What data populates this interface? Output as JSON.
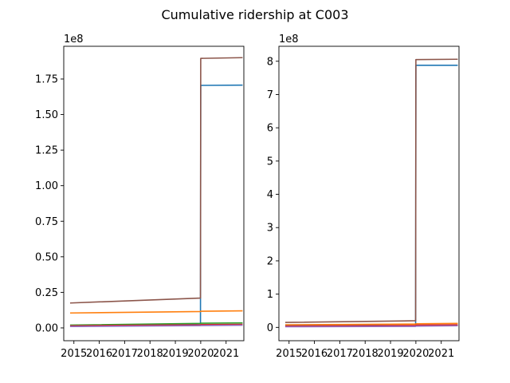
{
  "figure": {
    "title": "Cumulative ridership at C003"
  },
  "chart_data": [
    {
      "type": "line",
      "title": "",
      "xlabel": "",
      "ylabel": "",
      "offset_label": "1e8",
      "xlim": [
        2014.6,
        2021.7
      ],
      "ylim": [
        -0.09,
        1.98
      ],
      "x_ticks": [
        2015,
        2016,
        2017,
        2018,
        2019,
        2020,
        2021
      ],
      "x_tick_labels": [
        "2015",
        "2016",
        "2017",
        "2018",
        "2019",
        "2020",
        "2021"
      ],
      "y_ticks": [
        0.0,
        0.25,
        0.5,
        0.75,
        1.0,
        1.25,
        1.5,
        1.75
      ],
      "y_tick_labels": [
        "0.00",
        "0.25",
        "0.50",
        "0.75",
        "1.00",
        "1.25",
        "1.50",
        "1.75"
      ],
      "grid": false,
      "series": [
        {
          "color": "#1f77b4",
          "x": [
            2014.85,
            2019.99,
            2020.0,
            2021.65
          ],
          "y": [
            0.01,
            0.03,
            1.705,
            1.707
          ]
        },
        {
          "color": "#ff7f0e",
          "x": [
            2014.85,
            2019.99,
            2020.0,
            2021.65
          ],
          "y": [
            0.105,
            0.115,
            0.117,
            0.12
          ]
        },
        {
          "color": "#2ca02c",
          "x": [
            2014.85,
            2019.99,
            2020.0,
            2021.65
          ],
          "y": [
            0.02,
            0.032,
            0.033,
            0.035
          ]
        },
        {
          "color": "#d62728",
          "x": [
            2014.85,
            2019.99,
            2020.0,
            2021.65
          ],
          "y": [
            0.015,
            0.022,
            0.023,
            0.025
          ]
        },
        {
          "color": "#9467bd",
          "x": [
            2014.85,
            2019.99,
            2020.0,
            2021.65
          ],
          "y": [
            0.01,
            0.016,
            0.017,
            0.019
          ]
        },
        {
          "color": "#8c564b",
          "x": [
            2014.85,
            2019.99,
            2020.0,
            2021.65
          ],
          "y": [
            0.175,
            0.21,
            1.895,
            1.9
          ]
        }
      ]
    },
    {
      "type": "line",
      "title": "",
      "xlabel": "",
      "ylabel": "",
      "offset_label": "1e8",
      "xlim": [
        2014.6,
        2021.7
      ],
      "ylim": [
        -0.4,
        8.45
      ],
      "x_ticks": [
        2015,
        2016,
        2017,
        2018,
        2019,
        2020,
        2021
      ],
      "x_tick_labels": [
        "2015",
        "2016",
        "2017",
        "2018",
        "2019",
        "2020",
        "2021"
      ],
      "y_ticks": [
        0,
        1,
        2,
        3,
        4,
        5,
        6,
        7,
        8
      ],
      "y_tick_labels": [
        "0",
        "1",
        "2",
        "3",
        "4",
        "5",
        "6",
        "7",
        "8"
      ],
      "grid": false,
      "series": [
        {
          "color": "#1f77b4",
          "x": [
            2014.85,
            2019.99,
            2020.0,
            2021.65
          ],
          "y": [
            0.06,
            0.1,
            7.88,
            7.88
          ]
        },
        {
          "color": "#ff7f0e",
          "x": [
            2014.85,
            2019.99,
            2020.0,
            2021.65
          ],
          "y": [
            0.08,
            0.1,
            0.11,
            0.12
          ]
        },
        {
          "color": "#2ca02c",
          "x": [
            2014.85,
            2019.99,
            2020.0,
            2021.65
          ],
          "y": [
            0.03,
            0.05,
            0.05,
            0.06
          ]
        },
        {
          "color": "#d62728",
          "x": [
            2014.85,
            2019.99,
            2020.0,
            2021.65
          ],
          "y": [
            0.04,
            0.06,
            0.07,
            0.08
          ]
        },
        {
          "color": "#9467bd",
          "x": [
            2014.85,
            2019.99,
            2020.0,
            2021.65
          ],
          "y": [
            0.02,
            0.03,
            0.04,
            0.05
          ]
        },
        {
          "color": "#8c564b",
          "x": [
            2014.85,
            2019.99,
            2020.0,
            2021.65
          ],
          "y": [
            0.15,
            0.2,
            8.05,
            8.06
          ]
        }
      ]
    }
  ]
}
